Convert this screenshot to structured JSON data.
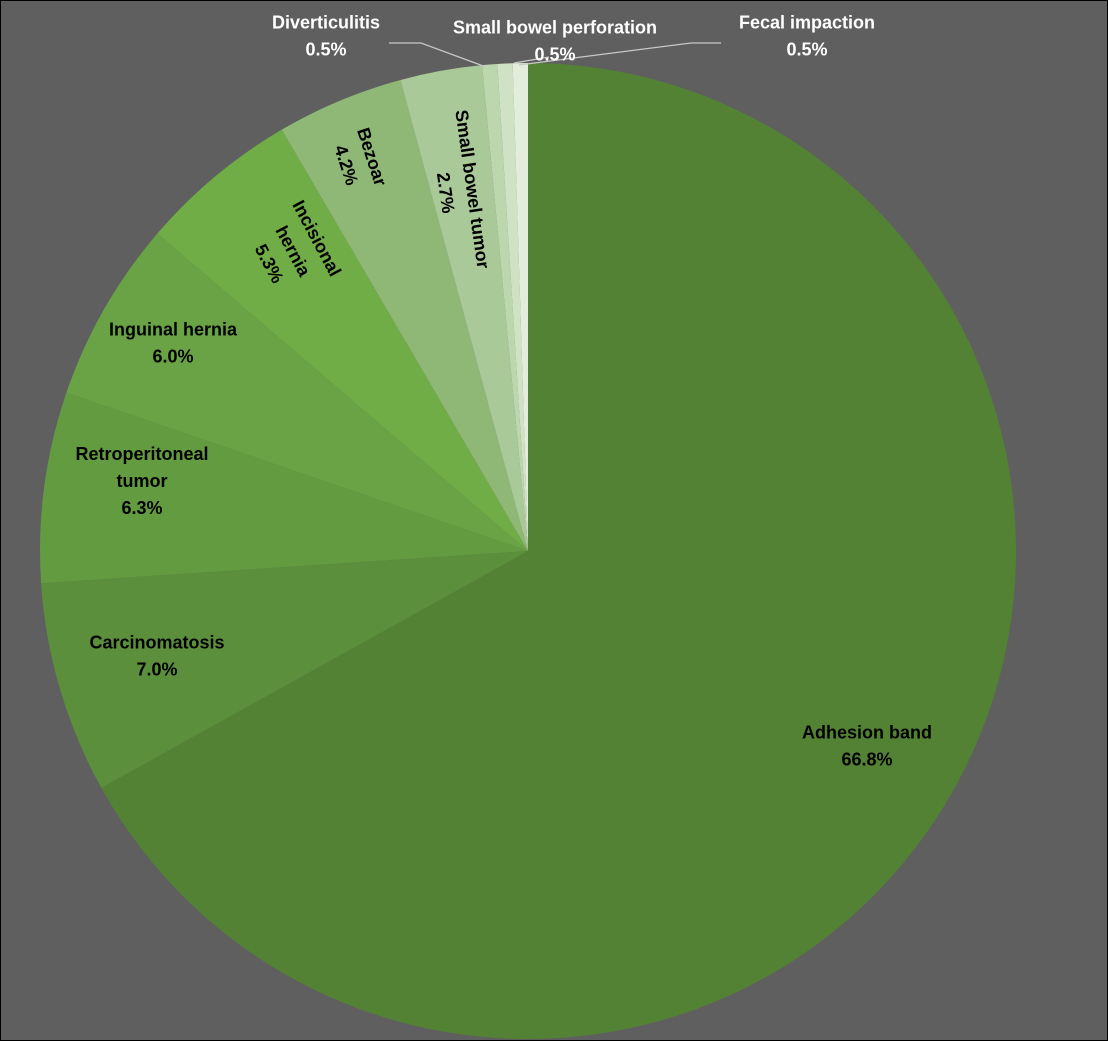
{
  "chart_data": {
    "type": "pie",
    "start_angle_deg": 0,
    "direction": "clockwise",
    "slices": [
      {
        "label": "Adhesion band",
        "pct_text": "66.8%",
        "value": 66.8,
        "color": "#548235"
      },
      {
        "label": "Carcinomatosis",
        "pct_text": "7.0%",
        "value": 7.0,
        "color": "#5b8f3b"
      },
      {
        "label": "Retroperitoneal tumor",
        "pct_text": "6.3%",
        "value": 6.3,
        "color": "#639b40"
      },
      {
        "label": "Inguinal hernia",
        "pct_text": "6.0%",
        "value": 6.0,
        "color": "#69a345"
      },
      {
        "label": "Incisional hernia",
        "pct_text": "5.3%",
        "value": 5.3,
        "color": "#70ad47"
      },
      {
        "label": "Bezoar",
        "pct_text": "4.2%",
        "value": 4.2,
        "color": "#8fb877"
      },
      {
        "label": "Small bowel tumor",
        "pct_text": "2.7%",
        "value": 2.7,
        "color": "#a9c998"
      },
      {
        "label": "Diverticulitis",
        "pct_text": "0.5%",
        "value": 0.5,
        "color": "#bcd6ad"
      },
      {
        "label": "Small bowel perforation",
        "pct_text": "0.5%",
        "value": 0.5,
        "color": "#cfe2c4"
      },
      {
        "label": "Fecal impaction",
        "pct_text": "0.5%",
        "value": 0.5,
        "color": "#e2eedb"
      }
    ]
  }
}
